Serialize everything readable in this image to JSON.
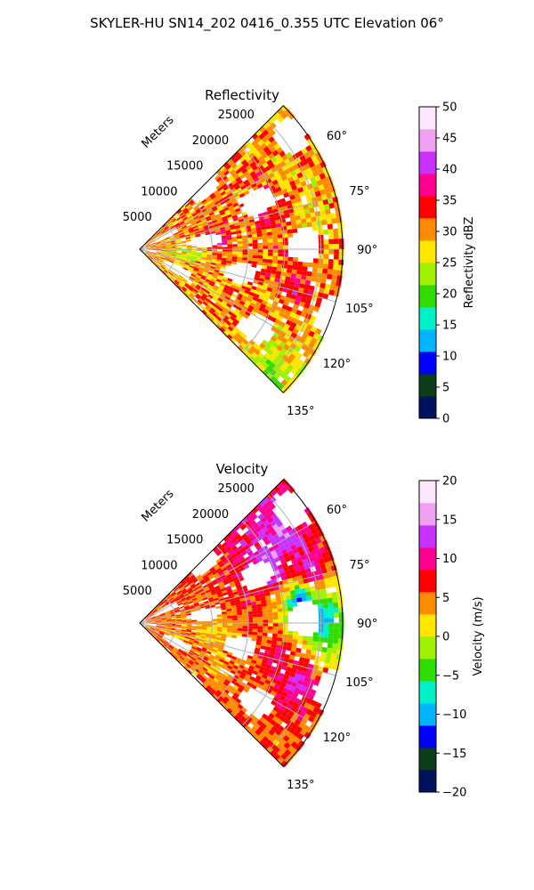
{
  "figure": {
    "title": "SKYLER-HU  SN14_202  0416_0.355 UTC Elevation 06°"
  },
  "chart_data": [
    {
      "type": "heatmap",
      "projection": "polar-sector",
      "title": "Reflectivity",
      "radial_label": "Meters",
      "radial_ticks": [
        "5000",
        "10000",
        "15000",
        "20000",
        "25000"
      ],
      "radial_tick_values": [
        5000,
        10000,
        15000,
        20000,
        25000
      ],
      "radial_max": 28000,
      "azimuth_range_deg": [
        45,
        135
      ],
      "azimuth_ticks": [
        "60°",
        "75°",
        "90°",
        "105°",
        "120°",
        "135°"
      ],
      "azimuth_tick_values": [
        60,
        75,
        90,
        105,
        120,
        135
      ],
      "grid": true,
      "colorbar": {
        "label": "Reflectivity dBZ",
        "min": 0,
        "max": 50,
        "ticks": [
          "0",
          "5",
          "10",
          "15",
          "20",
          "25",
          "30",
          "35",
          "40",
          "45",
          "50"
        ],
        "tick_values": [
          0,
          5,
          10,
          15,
          20,
          25,
          30,
          35,
          40,
          45,
          50
        ],
        "colors": [
          "#00125e",
          "#0a3d1a",
          "#0000ff",
          "#00b4ff",
          "#00f0c8",
          "#32dc00",
          "#a0f000",
          "#ffe600",
          "#ff8c00",
          "#ff0000",
          "#ff0090",
          "#c832ff",
          "#f0a0f0",
          "#ffe6ff"
        ]
      },
      "cells": [
        {
          "az": 60,
          "r": 22000,
          "v": 28
        },
        {
          "az": 64,
          "r": 19000,
          "v": 33
        },
        {
          "az": 68,
          "r": 16500,
          "v": 29
        },
        {
          "az": 72,
          "r": 21000,
          "v": 31
        },
        {
          "az": 74,
          "r": 18000,
          "v": 35
        },
        {
          "az": 78,
          "r": 23500,
          "v": 26
        },
        {
          "az": 84,
          "r": 10500,
          "v": 38
        },
        {
          "az": 88,
          "r": 13000,
          "v": 30
        },
        {
          "az": 93,
          "r": 7000,
          "v": 24
        },
        {
          "az": 100,
          "r": 20500,
          "v": 33
        },
        {
          "az": 104,
          "r": 22000,
          "v": 36
        },
        {
          "az": 108,
          "r": 12500,
          "v": 31
        },
        {
          "az": 114,
          "r": 20000,
          "v": 29
        },
        {
          "az": 120,
          "r": 16000,
          "v": 30
        },
        {
          "az": 128,
          "r": 21000,
          "v": 26
        },
        {
          "az": 132,
          "r": 24000,
          "v": 22
        }
      ]
    },
    {
      "type": "heatmap",
      "projection": "polar-sector",
      "title": "Velocity",
      "radial_label": "Meters",
      "radial_ticks": [
        "5000",
        "10000",
        "15000",
        "20000",
        "25000"
      ],
      "radial_tick_values": [
        5000,
        10000,
        15000,
        20000,
        25000
      ],
      "radial_max": 28000,
      "azimuth_range_deg": [
        45,
        135
      ],
      "azimuth_ticks": [
        "60°",
        "75°",
        "90°",
        "105°",
        "120°",
        "135°"
      ],
      "azimuth_tick_values": [
        60,
        75,
        90,
        105,
        120,
        135
      ],
      "grid": true,
      "colorbar": {
        "label": "Velocity (m/s)",
        "min": -20,
        "max": 20,
        "ticks": [
          "−20",
          "−15",
          "−10",
          "−5",
          "0",
          "5",
          "10",
          "15",
          "20"
        ],
        "tick_values": [
          -20,
          -15,
          -10,
          -5,
          0,
          5,
          10,
          15,
          20
        ],
        "colors": [
          "#00125e",
          "#0a3d1a",
          "#0000ff",
          "#00b4ff",
          "#00f0c8",
          "#32dc00",
          "#a0f000",
          "#ffe600",
          "#ff8c00",
          "#ff0000",
          "#ff0090",
          "#c832ff",
          "#f0a0f0",
          "#ffe6ff"
        ]
      },
      "cells": [
        {
          "az": 58,
          "r": 23000,
          "v": 14
        },
        {
          "az": 66,
          "r": 19500,
          "v": 15
        },
        {
          "az": 72,
          "r": 24500,
          "v": 12
        },
        {
          "az": 82,
          "r": 22000,
          "v": -12
        },
        {
          "az": 88,
          "r": 25000,
          "v": -11
        },
        {
          "az": 80,
          "r": 15000,
          "v": 7
        },
        {
          "az": 96,
          "r": 11000,
          "v": 2
        },
        {
          "az": 104,
          "r": 19000,
          "v": 10
        },
        {
          "az": 110,
          "r": 23000,
          "v": 12
        },
        {
          "az": 118,
          "r": 14000,
          "v": 4
        },
        {
          "az": 126,
          "r": 19000,
          "v": 6
        },
        {
          "az": 132,
          "r": 24000,
          "v": 5
        }
      ]
    }
  ]
}
